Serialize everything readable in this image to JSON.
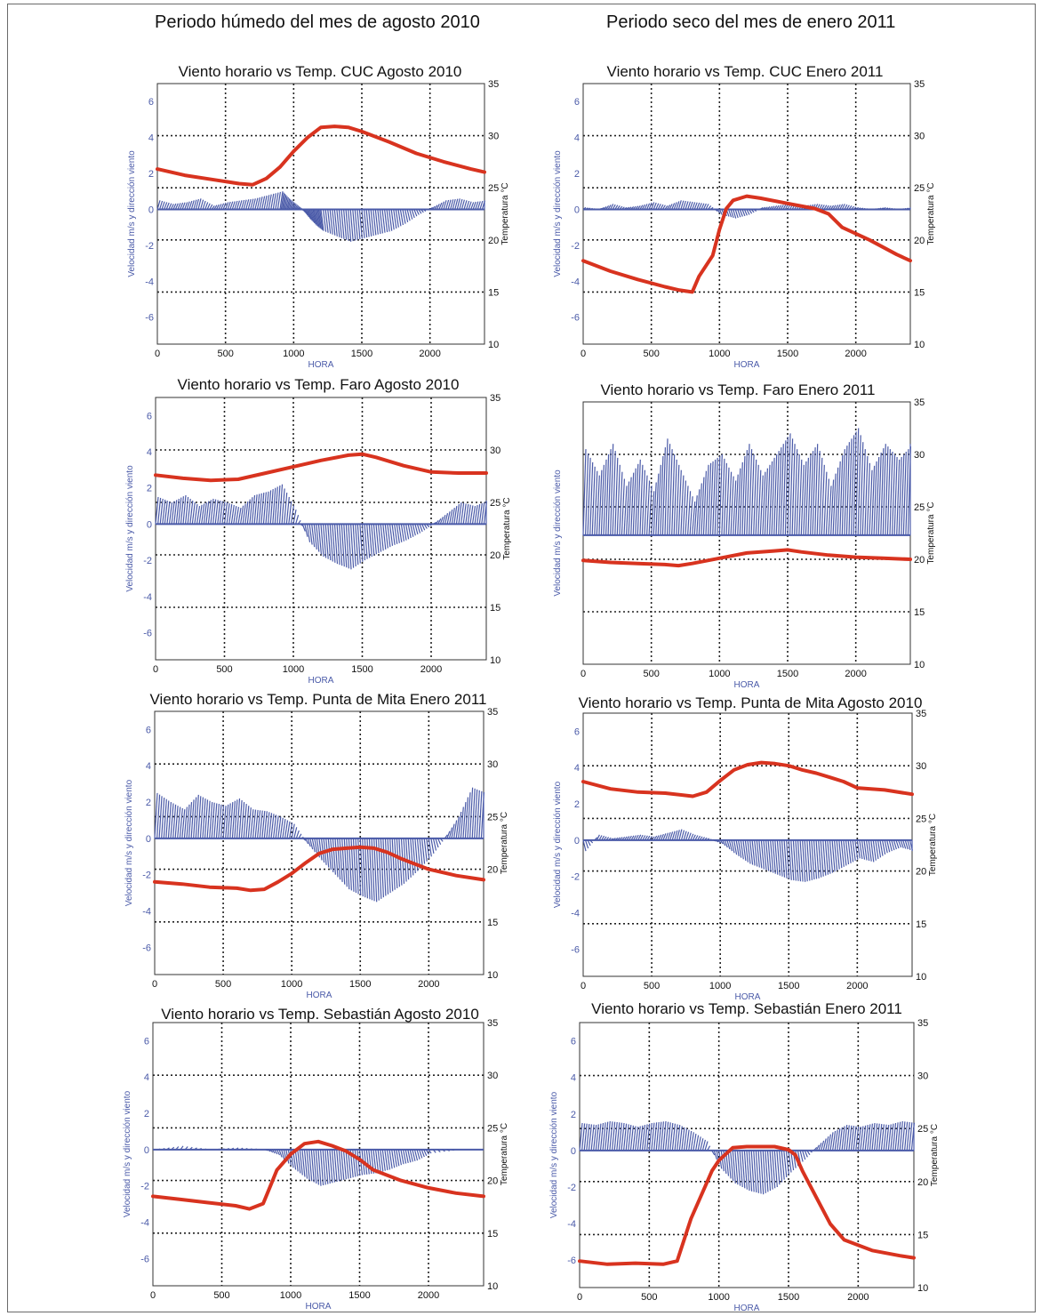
{
  "page": {
    "left_title": "Periodo húmedo del mes de agosto 2010",
    "right_title": "Periodo seco del mes de enero 2011"
  },
  "colors": {
    "wind": "#4a5aa8",
    "temperature": "#d8331f",
    "grid": "#222222",
    "axis_label": "#4a5aa8"
  },
  "chart_data": [
    {
      "type": "line",
      "title": "Viento horario vs Temp. CUC Agosto 2010",
      "xlabel": "HORA",
      "ylabel": "Velocidad m/s y dirección viento",
      "y2label": "Temperatura °C",
      "xlim": [
        0,
        2400
      ],
      "ylim": [
        -7.5,
        7
      ],
      "y2lim": [
        10,
        35
      ],
      "xticks": [
        0,
        500,
        1000,
        1500,
        2000
      ],
      "yticks": [
        6,
        4,
        2,
        0,
        -2,
        -4,
        -6
      ],
      "y2ticks": [
        35,
        30,
        25,
        20,
        15,
        10
      ],
      "grid": true,
      "series": [
        {
          "axis": "left",
          "x": [
            0,
            100,
            200,
            300,
            400,
            500,
            600,
            700,
            800,
            900,
            950,
            1000,
            1050,
            1100,
            1150,
            1200,
            1300,
            1400,
            1500,
            1600,
            1700,
            1800,
            1900,
            2000,
            2100,
            2200,
            2300,
            2400
          ],
          "y": [
            0.5,
            0.3,
            0.4,
            0.6,
            0.2,
            0.4,
            0.5,
            0.6,
            0.8,
            1.0,
            0.6,
            0.3,
            0.0,
            -0.5,
            -0.9,
            -1.2,
            -1.5,
            -1.8,
            -1.6,
            -1.4,
            -1.2,
            -0.8,
            -0.3,
            0.1,
            0.5,
            0.6,
            0.4,
            0.5
          ]
        },
        {
          "axis": "right",
          "x": [
            0,
            200,
            400,
            600,
            700,
            800,
            900,
            1000,
            1100,
            1200,
            1300,
            1400,
            1500,
            1700,
            1900,
            2100,
            2300,
            2400
          ],
          "y": [
            26.8,
            26.2,
            25.8,
            25.4,
            25.3,
            25.9,
            27.0,
            28.5,
            29.8,
            30.8,
            30.9,
            30.8,
            30.4,
            29.4,
            28.3,
            27.5,
            26.8,
            26.5
          ]
        }
      ]
    },
    {
      "type": "line",
      "title": "Viento horario vs Temp. CUC Enero 2011",
      "xlabel": "HORA",
      "ylabel": "Velocidad m/s y dirección viento",
      "y2label": "Temperatura °C",
      "xlim": [
        0,
        2400
      ],
      "ylim": [
        -7.5,
        7
      ],
      "y2lim": [
        10,
        35
      ],
      "xticks": [
        0,
        500,
        1000,
        1500,
        2000
      ],
      "yticks": [
        6,
        4,
        2,
        0,
        -2,
        -4,
        -6
      ],
      "y2ticks": [
        35,
        30,
        25,
        20,
        15,
        10
      ],
      "grid": true,
      "series": [
        {
          "axis": "left",
          "x": [
            0,
            100,
            200,
            300,
            400,
            500,
            600,
            700,
            800,
            900,
            1000,
            1100,
            1200,
            1300,
            1400,
            1500,
            1600,
            1700,
            1800,
            1900,
            2000,
            2100,
            2200,
            2300,
            2400
          ],
          "y": [
            0.1,
            0.0,
            0.3,
            0.1,
            0.2,
            0.4,
            0.2,
            0.5,
            0.4,
            0.3,
            -0.3,
            -0.5,
            -0.3,
            0.1,
            0.2,
            0.3,
            0.2,
            0.3,
            0.2,
            0.3,
            0.1,
            0.0,
            0.1,
            0.0,
            0.1
          ]
        },
        {
          "axis": "right",
          "x": [
            0,
            200,
            400,
            600,
            700,
            800,
            850,
            950,
            1000,
            1050,
            1100,
            1200,
            1300,
            1500,
            1700,
            1800,
            1900,
            2100,
            2300,
            2400
          ],
          "y": [
            18.0,
            17.0,
            16.2,
            15.5,
            15.2,
            15.0,
            16.5,
            18.5,
            21.0,
            23.0,
            23.8,
            24.2,
            24.0,
            23.5,
            23.0,
            22.5,
            21.2,
            20.0,
            18.6,
            18.0
          ]
        }
      ]
    },
    {
      "type": "line",
      "title": "Viento horario vs Temp.  Faro Agosto 2010",
      "xlabel": "HORA",
      "ylabel": "Velocidad m/s y dirección viento",
      "y2label": "Temperatura °C",
      "xlim": [
        0,
        2400
      ],
      "ylim": [
        -7.5,
        7
      ],
      "y2lim": [
        10,
        35
      ],
      "xticks": [
        0,
        500,
        1000,
        1500,
        2000
      ],
      "yticks": [
        6,
        4,
        2,
        0,
        -2,
        -4,
        -6
      ],
      "y2ticks": [
        35,
        30,
        25,
        20,
        15,
        10
      ],
      "grid": true,
      "series": [
        {
          "axis": "left",
          "x": [
            0,
            100,
            200,
            300,
            400,
            500,
            600,
            700,
            800,
            900,
            1000,
            1100,
            1200,
            1300,
            1400,
            1500,
            1600,
            1700,
            1800,
            1900,
            2000,
            2100,
            2200,
            2300,
            2400
          ],
          "y": [
            1.5,
            1.2,
            1.6,
            1.0,
            1.4,
            1.2,
            0.9,
            1.6,
            1.8,
            2.2,
            0.8,
            -1.0,
            -1.8,
            -2.2,
            -2.5,
            -2.0,
            -1.6,
            -1.2,
            -0.9,
            -0.5,
            0.0,
            0.6,
            1.2,
            1.0,
            1.3
          ]
        },
        {
          "axis": "right",
          "x": [
            0,
            200,
            400,
            600,
            800,
            1000,
            1200,
            1400,
            1500,
            1600,
            1800,
            2000,
            2200,
            2400
          ],
          "y": [
            27.6,
            27.3,
            27.1,
            27.2,
            27.8,
            28.4,
            29.0,
            29.5,
            29.6,
            29.3,
            28.5,
            27.9,
            27.8,
            27.8
          ]
        }
      ]
    },
    {
      "type": "line",
      "title": "Viento horario vs Temp. Faro Enero 2011",
      "xlabel": "HORA",
      "ylabel": "Velocidad m/s y dirección viento",
      "y2label": "Temperatura °C",
      "xlim": [
        0,
        2400
      ],
      "y2lim": [
        10,
        35
      ],
      "xticks": [
        0,
        500,
        1000,
        1500,
        2000
      ],
      "y2ticks": [
        35,
        30,
        25,
        20,
        15,
        10
      ],
      "grid": true,
      "series": [
        {
          "axis": "right",
          "x": [
            0,
            100,
            200,
            300,
            400,
            500,
            600,
            700,
            800,
            900,
            1000,
            1100,
            1200,
            1300,
            1400,
            1500,
            1600,
            1700,
            1800,
            1900,
            2000,
            2100,
            2200,
            2300,
            2400
          ],
          "y": [
            30.5,
            28.0,
            31.0,
            27.0,
            29.5,
            26.5,
            31.5,
            28.5,
            25.5,
            29.0,
            30.0,
            27.5,
            31.0,
            28.0,
            30.0,
            32.0,
            29.0,
            31.0,
            27.0,
            30.5,
            32.5,
            28.5,
            31.0,
            29.5,
            31.0
          ]
        },
        {
          "axis": "right",
          "x": [
            0,
            200,
            400,
            600,
            700,
            800,
            1000,
            1200,
            1400,
            1500,
            1600,
            1800,
            2000,
            2200,
            2400
          ],
          "y": [
            19.9,
            19.7,
            19.6,
            19.5,
            19.4,
            19.6,
            20.1,
            20.6,
            20.8,
            20.9,
            20.7,
            20.4,
            20.2,
            20.1,
            20.0
          ]
        }
      ]
    },
    {
      "type": "line",
      "title": "Viento horario vs Temp. Punta de Mita Enero 2011",
      "xlabel": "HORA",
      "ylabel": "Velocidad m/s y dirección viento",
      "y2label": "Temperatura °C",
      "xlim": [
        0,
        2400
      ],
      "ylim": [
        -7.5,
        7
      ],
      "y2lim": [
        10,
        35
      ],
      "xticks": [
        0,
        500,
        1000,
        1500,
        2000
      ],
      "yticks": [
        6,
        4,
        2,
        0,
        -2,
        -4,
        -6
      ],
      "y2ticks": [
        35,
        30,
        25,
        20,
        15,
        10
      ],
      "grid": true,
      "series": [
        {
          "axis": "left",
          "x": [
            0,
            100,
            200,
            300,
            400,
            500,
            600,
            700,
            800,
            900,
            1000,
            1100,
            1200,
            1300,
            1400,
            1500,
            1600,
            1700,
            1800,
            1900,
            2000,
            2100,
            2200,
            2300,
            2400
          ],
          "y": [
            2.5,
            2.0,
            1.6,
            2.4,
            2.0,
            1.8,
            2.2,
            1.6,
            1.5,
            1.2,
            0.8,
            -0.3,
            -1.2,
            -2.0,
            -2.8,
            -3.2,
            -3.5,
            -3.0,
            -2.5,
            -1.8,
            -1.0,
            0.0,
            1.2,
            2.8,
            2.5
          ]
        },
        {
          "axis": "right",
          "x": [
            0,
            200,
            400,
            600,
            700,
            800,
            900,
            1000,
            1100,
            1200,
            1300,
            1400,
            1500,
            1600,
            1700,
            1800,
            1900,
            2000,
            2200,
            2400
          ],
          "y": [
            18.8,
            18.6,
            18.3,
            18.2,
            18.0,
            18.1,
            18.8,
            19.6,
            20.6,
            21.5,
            21.9,
            22.0,
            22.1,
            22.0,
            21.6,
            21.0,
            20.5,
            20.0,
            19.4,
            19.0
          ]
        }
      ]
    },
    {
      "type": "line",
      "title": "Viento horario vs Temp. Punta de Mita Agosto 2010",
      "xlabel": "HORA",
      "ylabel": "Velocidad m/s y dirección viento",
      "y2label": "Temperatura °C",
      "xlim": [
        0,
        2400
      ],
      "ylim": [
        -7.5,
        7
      ],
      "y2lim": [
        10,
        35
      ],
      "xticks": [
        0,
        500,
        1000,
        1500,
        2000
      ],
      "yticks": [
        6,
        4,
        2,
        0,
        -2,
        -4,
        -6
      ],
      "y2ticks": [
        35,
        30,
        25,
        20,
        15,
        10
      ],
      "grid": true,
      "series": [
        {
          "axis": "left",
          "x": [
            0,
            100,
            200,
            300,
            400,
            500,
            600,
            700,
            800,
            900,
            1000,
            1100,
            1200,
            1300,
            1400,
            1500,
            1600,
            1700,
            1800,
            1900,
            2000,
            2100,
            2200,
            2300,
            2400
          ],
          "y": [
            -0.6,
            0.3,
            0.1,
            0.2,
            0.3,
            0.2,
            0.4,
            0.6,
            0.3,
            0.1,
            -0.2,
            -0.8,
            -1.3,
            -1.6,
            -1.9,
            -2.2,
            -2.3,
            -2.1,
            -1.8,
            -1.4,
            -1.0,
            -1.2,
            -0.7,
            -0.4,
            -0.6
          ]
        },
        {
          "axis": "right",
          "x": [
            0,
            200,
            400,
            600,
            800,
            900,
            1000,
            1100,
            1200,
            1300,
            1400,
            1500,
            1600,
            1700,
            1800,
            1900,
            2000,
            2200,
            2400
          ],
          "y": [
            28.5,
            27.8,
            27.5,
            27.4,
            27.1,
            27.5,
            28.6,
            29.6,
            30.1,
            30.3,
            30.2,
            30.0,
            29.6,
            29.3,
            28.9,
            28.5,
            27.9,
            27.7,
            27.3
          ]
        }
      ]
    },
    {
      "type": "line",
      "title": "Viento horario vs Temp. Sebastián Agosto 2010",
      "xlabel": "HORA",
      "ylabel": "Velocidad m/s y dirección viento",
      "y2label": "Temperatura °C",
      "xlim": [
        0,
        2400
      ],
      "ylim": [
        -7.5,
        7
      ],
      "y2lim": [
        10,
        35
      ],
      "xticks": [
        0,
        500,
        1000,
        1500,
        2000
      ],
      "yticks": [
        6,
        4,
        2,
        0,
        -2,
        -4,
        -6
      ],
      "y2ticks": [
        35,
        30,
        25,
        20,
        15,
        10
      ],
      "grid": true,
      "series": [
        {
          "axis": "left",
          "x": [
            0,
            200,
            400,
            600,
            800,
            900,
            1000,
            1100,
            1200,
            1300,
            1400,
            1500,
            1600,
            1700,
            1800,
            1900,
            2000,
            2200,
            2400
          ],
          "y": [
            0.0,
            0.2,
            0.0,
            0.1,
            0.0,
            -0.3,
            -1.0,
            -1.6,
            -2.0,
            -1.8,
            -1.6,
            -1.4,
            -1.3,
            -1.1,
            -0.8,
            -0.6,
            -0.2,
            0.0,
            0.0
          ]
        },
        {
          "axis": "right",
          "x": [
            0,
            200,
            400,
            600,
            700,
            800,
            850,
            900,
            1000,
            1100,
            1200,
            1300,
            1400,
            1500,
            1600,
            1800,
            2000,
            2200,
            2400
          ],
          "y": [
            18.5,
            18.2,
            17.9,
            17.6,
            17.3,
            17.8,
            19.4,
            21.0,
            22.5,
            23.5,
            23.7,
            23.3,
            22.8,
            22.0,
            21.0,
            20.0,
            19.3,
            18.8,
            18.5
          ]
        }
      ]
    },
    {
      "type": "line",
      "title": "Viento horario vs Temp. Sebastián Enero 2011",
      "xlabel": "HORA",
      "ylabel": "Velocidad m/s y dirección viento",
      "y2label": "Temperatura °C",
      "xlim": [
        0,
        2400
      ],
      "ylim": [
        -7.5,
        7
      ],
      "y2lim": [
        10,
        35
      ],
      "xticks": [
        0,
        500,
        1000,
        1500,
        2000
      ],
      "yticks": [
        6,
        4,
        2,
        0,
        -2,
        -4,
        -6
      ],
      "y2ticks": [
        35,
        30,
        25,
        20,
        15,
        10
      ],
      "grid": true,
      "series": [
        {
          "axis": "left",
          "x": [
            0,
            100,
            200,
            300,
            400,
            500,
            600,
            700,
            800,
            900,
            1000,
            1100,
            1200,
            1300,
            1400,
            1500,
            1600,
            1700,
            1800,
            1900,
            2000,
            2100,
            2200,
            2300,
            2400
          ],
          "y": [
            1.5,
            1.4,
            1.6,
            1.5,
            1.3,
            1.5,
            1.6,
            1.4,
            1.0,
            0.5,
            -1.0,
            -1.8,
            -2.2,
            -2.4,
            -2.0,
            -1.2,
            -0.5,
            0.3,
            1.0,
            1.4,
            1.3,
            1.5,
            1.4,
            1.6,
            1.5
          ]
        },
        {
          "axis": "right",
          "x": [
            0,
            200,
            400,
            600,
            700,
            750,
            800,
            900,
            950,
            1000,
            1100,
            1200,
            1400,
            1500,
            1550,
            1600,
            1700,
            1800,
            1900,
            2100,
            2300,
            2400
          ],
          "y": [
            12.5,
            12.2,
            12.3,
            12.2,
            12.5,
            14.5,
            16.5,
            19.5,
            21.0,
            22.0,
            23.2,
            23.3,
            23.3,
            23.0,
            22.5,
            21.0,
            18.5,
            16.0,
            14.5,
            13.5,
            13.0,
            12.8
          ]
        }
      ]
    }
  ]
}
